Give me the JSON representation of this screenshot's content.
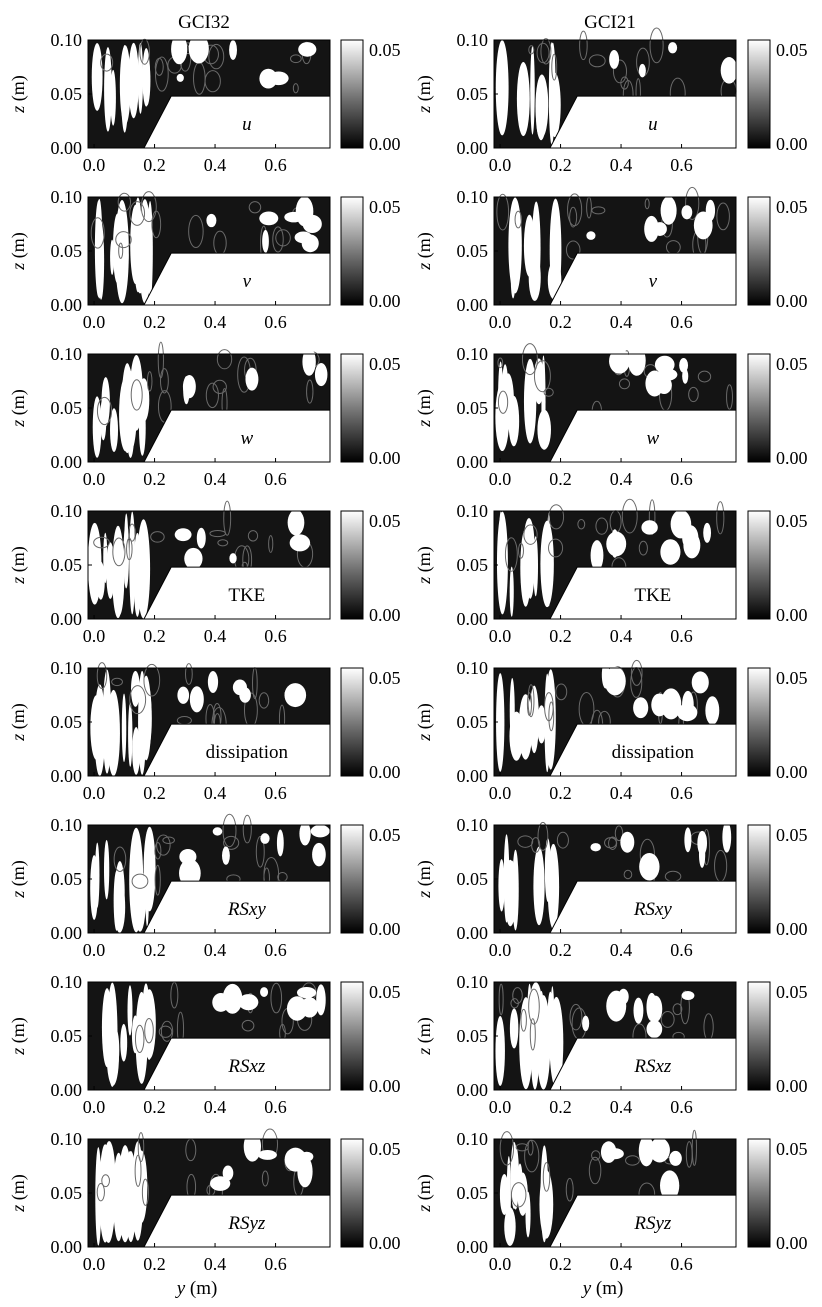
{
  "figure": {
    "column_titles": [
      "GCI32",
      "GCI21"
    ],
    "x_label_var": "y",
    "x_label_unit": " (m)",
    "y_label_var": "z",
    "y_label_unit": " (m)"
  },
  "chart_data": {
    "type": "heatmap",
    "description_of_grid": "8 rows x 2 columns of contour maps",
    "x_ticks": [
      "0.0",
      "0.2",
      "0.4",
      "0.6"
    ],
    "x_tick_values": [
      0.0,
      0.2,
      0.4,
      0.6
    ],
    "xlim": [
      -0.02,
      0.78
    ],
    "y_ticks": [
      "0.00",
      "0.05",
      "0.10"
    ],
    "y_tick_values": [
      0.0,
      0.05,
      0.1
    ],
    "ylim": [
      0.0,
      0.1
    ],
    "colorbar_ticks": [
      "0.05",
      "0.00"
    ],
    "colorbar_range": [
      0.0,
      0.055
    ],
    "colorbar_colors": [
      "#000000",
      "#ffffff"
    ],
    "geometry": {
      "floodplain_height": 0.048,
      "channel_bank_bottom_y": 0.165,
      "channel_bank_top_y": 0.255
    },
    "row_labels": [
      {
        "text": "u",
        "italic": true
      },
      {
        "text": "v",
        "italic": true
      },
      {
        "text": "w",
        "italic": true
      },
      {
        "text": "TKE",
        "italic": false
      },
      {
        "text": "dissipation",
        "italic": false
      },
      {
        "text": "RSxy",
        "italic": true
      },
      {
        "text": "RSxz",
        "italic": true
      },
      {
        "text": "RSyz",
        "italic": true
      }
    ],
    "columns": [
      "GCI32",
      "GCI21"
    ]
  }
}
